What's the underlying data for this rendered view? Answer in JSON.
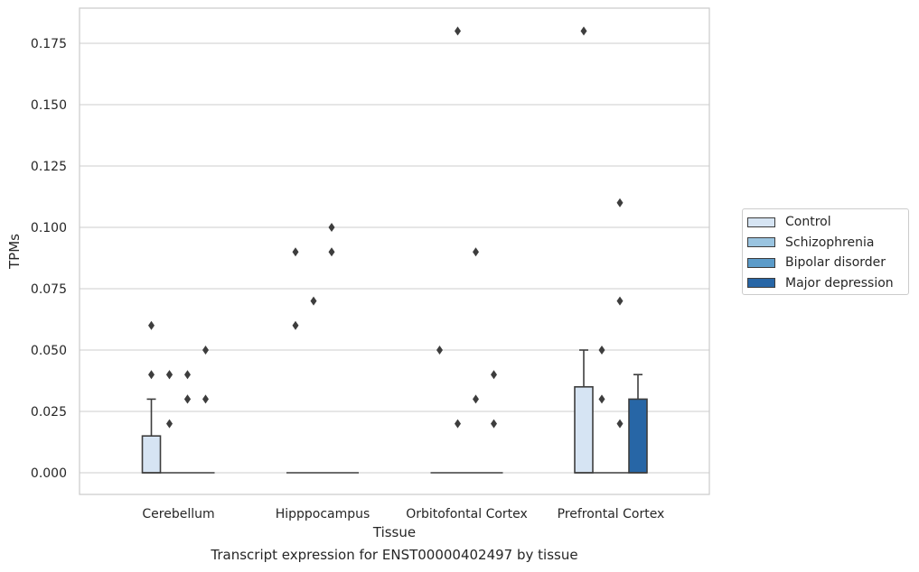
{
  "chart_data": {
    "type": "box",
    "xlabel": "Tissue",
    "ylabel": "TPMs",
    "ylim": [
      -0.009,
      0.19
    ],
    "yticks": [
      "0.000",
      "0.025",
      "0.050",
      "0.075",
      "0.100",
      "0.125",
      "0.150",
      "0.175"
    ],
    "ytick_values": [
      0,
      0.025,
      0.05,
      0.075,
      0.1,
      0.125,
      0.15,
      0.175
    ],
    "categories": [
      "Cerebellum",
      "Hipppocampus",
      "Orbitofontal Cortex",
      "Prefrontal Cortex"
    ],
    "grid": "horizontal",
    "legend_position": "right",
    "series": [
      {
        "name": "Control",
        "color": "#d6e4f3",
        "boxes": [
          {
            "q1": 0,
            "median": 0,
            "q3": 0.015,
            "whisker_low": 0,
            "whisker_high": 0.03,
            "outliers": [
              0.04,
              0.06
            ]
          },
          {
            "q1": 0,
            "median": 0,
            "q3": 0,
            "whisker_low": 0,
            "whisker_high": 0,
            "outliers": [
              0.06,
              0.09
            ]
          },
          {
            "q1": 0,
            "median": 0,
            "q3": 0,
            "whisker_low": 0,
            "whisker_high": 0,
            "outliers": [
              0.05
            ]
          },
          {
            "q1": 0,
            "median": 0,
            "q3": 0.035,
            "whisker_low": 0,
            "whisker_high": 0.05,
            "outliers": [
              0.18
            ]
          }
        ]
      },
      {
        "name": "Schizophrenia",
        "color": "#9ac4e0",
        "boxes": [
          {
            "q1": 0,
            "median": 0,
            "q3": 0,
            "whisker_low": 0,
            "whisker_high": 0,
            "outliers": [
              0.02,
              0.04,
              0.04
            ]
          },
          {
            "q1": 0,
            "median": 0,
            "q3": 0,
            "whisker_low": 0,
            "whisker_high": 0,
            "outliers": [
              0.07
            ]
          },
          {
            "q1": 0,
            "median": 0,
            "q3": 0,
            "whisker_low": 0,
            "whisker_high": 0,
            "outliers": [
              0.02,
              0.18
            ]
          },
          {
            "q1": 0,
            "median": 0,
            "q3": 0,
            "whisker_low": 0,
            "whisker_high": 0,
            "outliers": [
              0.03,
              0.05
            ]
          }
        ]
      },
      {
        "name": "Bipolar disorder",
        "color": "#5b9bc9",
        "boxes": [
          {
            "q1": 0,
            "median": 0,
            "q3": 0,
            "whisker_low": 0,
            "whisker_high": 0,
            "outliers": [
              0.03,
              0.03,
              0.04
            ]
          },
          {
            "q1": 0,
            "median": 0,
            "q3": 0,
            "whisker_low": 0,
            "whisker_high": 0,
            "outliers": [
              0.09,
              0.1
            ]
          },
          {
            "q1": 0,
            "median": 0,
            "q3": 0,
            "whisker_low": 0,
            "whisker_high": 0,
            "outliers": [
              0.03,
              0.09
            ]
          },
          {
            "q1": 0,
            "median": 0,
            "q3": 0,
            "whisker_low": 0,
            "whisker_high": 0,
            "outliers": [
              0.02,
              0.07,
              0.11
            ]
          }
        ]
      },
      {
        "name": "Major depression",
        "color": "#2766a6",
        "boxes": [
          {
            "q1": 0,
            "median": 0,
            "q3": 0,
            "whisker_low": 0,
            "whisker_high": 0,
            "outliers": [
              0.03,
              0.05
            ]
          },
          {
            "q1": 0,
            "median": 0,
            "q3": 0,
            "whisker_low": 0,
            "whisker_high": 0,
            "outliers": []
          },
          {
            "q1": 0,
            "median": 0,
            "q3": 0,
            "whisker_low": 0,
            "whisker_high": 0,
            "outliers": [
              0.02,
              0.04
            ]
          },
          {
            "q1": 0,
            "median": 0,
            "q3": 0.03,
            "whisker_low": 0,
            "whisker_high": 0.04,
            "outliers": []
          }
        ]
      }
    ]
  },
  "caption": "Transcript expression for ENST00000402497 by tissue"
}
